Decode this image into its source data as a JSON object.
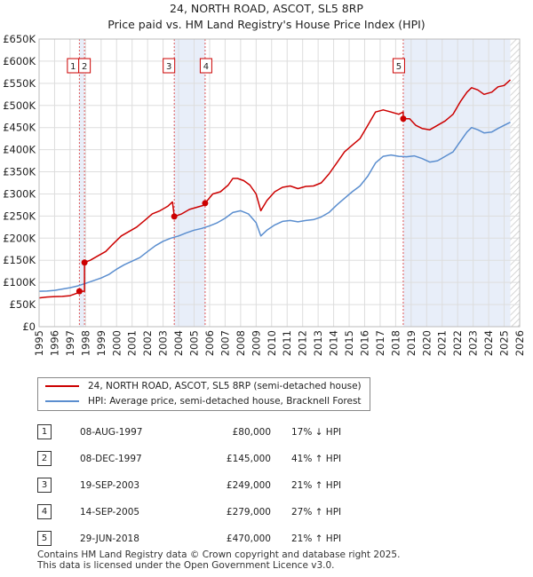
{
  "header": {
    "title": "24, NORTH ROAD, ASCOT, SL5 8RP",
    "subtitle": "Price paid vs. HM Land Registry's House Price Index (HPI)"
  },
  "chart_data": {
    "type": "line",
    "title": "24, NORTH ROAD, ASCOT, SL5 8RP",
    "subtitle": "Price paid vs. HM Land Registry's House Price Index (HPI)",
    "xlabel": "",
    "ylabel": "",
    "xlim": [
      1995,
      2026
    ],
    "ylim": [
      0,
      650000
    ],
    "x_ticks": [
      1995,
      1996,
      1997,
      1998,
      1999,
      2000,
      2001,
      2002,
      2003,
      2004,
      2005,
      2006,
      2007,
      2008,
      2009,
      2010,
      2011,
      2012,
      2013,
      2014,
      2015,
      2016,
      2017,
      2018,
      2019,
      2020,
      2021,
      2022,
      2023,
      2024,
      2025,
      2026
    ],
    "y_ticks": [
      0,
      50000,
      100000,
      150000,
      200000,
      250000,
      300000,
      350000,
      400000,
      450000,
      500000,
      550000,
      600000,
      650000
    ],
    "y_tick_labels": [
      "£0",
      "£50K",
      "£100K",
      "£150K",
      "£200K",
      "£250K",
      "£300K",
      "£350K",
      "£400K",
      "£450K",
      "£500K",
      "£550K",
      "£600K",
      "£650K"
    ],
    "grid": true,
    "colors": {
      "property": "#cc0000",
      "hpi": "#5b8ecf",
      "shade": "#e8eef9",
      "vline": "#dd5555"
    },
    "series": [
      {
        "name": "24, NORTH ROAD, ASCOT, SL5 8RP (semi-detached house)",
        "color": "#cc0000",
        "x": [
          1995.0,
          1995.5,
          1996.0,
          1996.5,
          1997.0,
          1997.4,
          1997.6,
          1997.6,
          1997.93,
          1997.93,
          1998.3,
          1998.8,
          1999.3,
          1999.8,
          2000.3,
          2000.8,
          2001.3,
          2001.8,
          2002.3,
          2002.8,
          2003.3,
          2003.6,
          2003.72,
          2003.72,
          2004.2,
          2004.7,
          2005.2,
          2005.7,
          2005.71,
          2005.71,
          2006.2,
          2006.7,
          2007.2,
          2007.5,
          2007.8,
          2008.2,
          2008.6,
          2009.0,
          2009.3,
          2009.7,
          2010.2,
          2010.7,
          2011.2,
          2011.7,
          2012.2,
          2012.7,
          2013.2,
          2013.7,
          2014.2,
          2014.7,
          2015.2,
          2015.7,
          2016.2,
          2016.7,
          2017.2,
          2017.7,
          2018.2,
          2018.49,
          2018.49,
          2018.9,
          2019.3,
          2019.7,
          2020.2,
          2020.7,
          2021.2,
          2021.7,
          2022.2,
          2022.6,
          2022.9,
          2023.3,
          2023.7,
          2024.2,
          2024.6,
          2025.0,
          2025.4
        ],
        "y": [
          65000,
          67000,
          68000,
          68500,
          70000,
          75000,
          78000,
          80000,
          80000,
          145000,
          150000,
          160000,
          170000,
          188000,
          205000,
          215000,
          225000,
          240000,
          255000,
          262000,
          272000,
          282000,
          249000,
          249000,
          255000,
          265000,
          270000,
          275000,
          279000,
          279000,
          300000,
          305000,
          320000,
          335000,
          335000,
          330000,
          320000,
          300000,
          262000,
          285000,
          305000,
          315000,
          318000,
          312000,
          317000,
          318000,
          325000,
          345000,
          370000,
          395000,
          410000,
          425000,
          455000,
          485000,
          490000,
          485000,
          480000,
          485000,
          470000,
          470000,
          455000,
          448000,
          445000,
          455000,
          465000,
          480000,
          510000,
          530000,
          540000,
          535000,
          525000,
          530000,
          542000,
          545000,
          558000
        ]
      },
      {
        "name": "HPI: Average price, semi-detached house, Bracknell Forest",
        "color": "#5b8ecf",
        "x": [
          1995.0,
          1995.5,
          1996.0,
          1996.5,
          1997.0,
          1997.5,
          1998.0,
          1998.5,
          1999.0,
          1999.5,
          2000.0,
          2000.5,
          2001.0,
          2001.5,
          2002.0,
          2002.5,
          2003.0,
          2003.5,
          2004.0,
          2004.5,
          2005.0,
          2005.5,
          2006.0,
          2006.5,
          2007.0,
          2007.5,
          2008.0,
          2008.5,
          2009.0,
          2009.3,
          2009.7,
          2010.2,
          2010.7,
          2011.2,
          2011.7,
          2012.2,
          2012.7,
          2013.2,
          2013.7,
          2014.2,
          2014.7,
          2015.2,
          2015.7,
          2016.2,
          2016.7,
          2017.2,
          2017.7,
          2018.2,
          2018.7,
          2019.2,
          2019.7,
          2020.2,
          2020.7,
          2021.2,
          2021.7,
          2022.2,
          2022.6,
          2022.9,
          2023.3,
          2023.7,
          2024.2,
          2024.6,
          2025.0,
          2025.4
        ],
        "y": [
          80000,
          80500,
          82000,
          85000,
          88000,
          92000,
          98000,
          104000,
          110000,
          118000,
          130000,
          140000,
          148000,
          156000,
          170000,
          183000,
          193000,
          200000,
          205000,
          212000,
          218000,
          222000,
          228000,
          235000,
          245000,
          258000,
          262000,
          255000,
          235000,
          205000,
          218000,
          230000,
          238000,
          240000,
          237000,
          240000,
          242000,
          248000,
          258000,
          275000,
          290000,
          305000,
          318000,
          340000,
          370000,
          385000,
          388000,
          385000,
          384000,
          386000,
          380000,
          372000,
          375000,
          385000,
          395000,
          420000,
          440000,
          450000,
          445000,
          438000,
          440000,
          448000,
          455000,
          462000
        ]
      }
    ],
    "sales": [
      {
        "num": "1",
        "date": "08-AUG-1997",
        "price": "£80,000",
        "hpi": "17% ↓ HPI",
        "x": 1997.6,
        "value": 80000
      },
      {
        "num": "2",
        "date": "08-DEC-1997",
        "price": "£145,000",
        "hpi": "41% ↑ HPI",
        "x": 1997.93,
        "value": 145000
      },
      {
        "num": "3",
        "date": "19-SEP-2003",
        "price": "£249,000",
        "hpi": "21% ↑ HPI",
        "x": 2003.72,
        "value": 249000
      },
      {
        "num": "4",
        "date": "14-SEP-2005",
        "price": "£279,000",
        "hpi": "27% ↑ HPI",
        "x": 2005.71,
        "value": 279000
      },
      {
        "num": "5",
        "date": "29-JUN-2018",
        "price": "£470,000",
        "hpi": "21% ↑ HPI",
        "x": 2018.49,
        "value": 470000
      }
    ],
    "shaded_regions": [
      [
        1997.6,
        1997.93
      ],
      [
        2003.72,
        2005.71
      ],
      [
        2018.49,
        2025.4
      ]
    ],
    "hatched_region": [
      2025.4,
      2026
    ]
  },
  "legend": {
    "property_label": "24, NORTH ROAD, ASCOT, SL5 8RP (semi-detached house)",
    "hpi_label": "HPI: Average price, semi-detached house, Bracknell Forest"
  },
  "footer": {
    "line1": "Contains HM Land Registry data © Crown copyright and database right 2025.",
    "line2": "This data is licensed under the Open Government Licence v3.0."
  }
}
